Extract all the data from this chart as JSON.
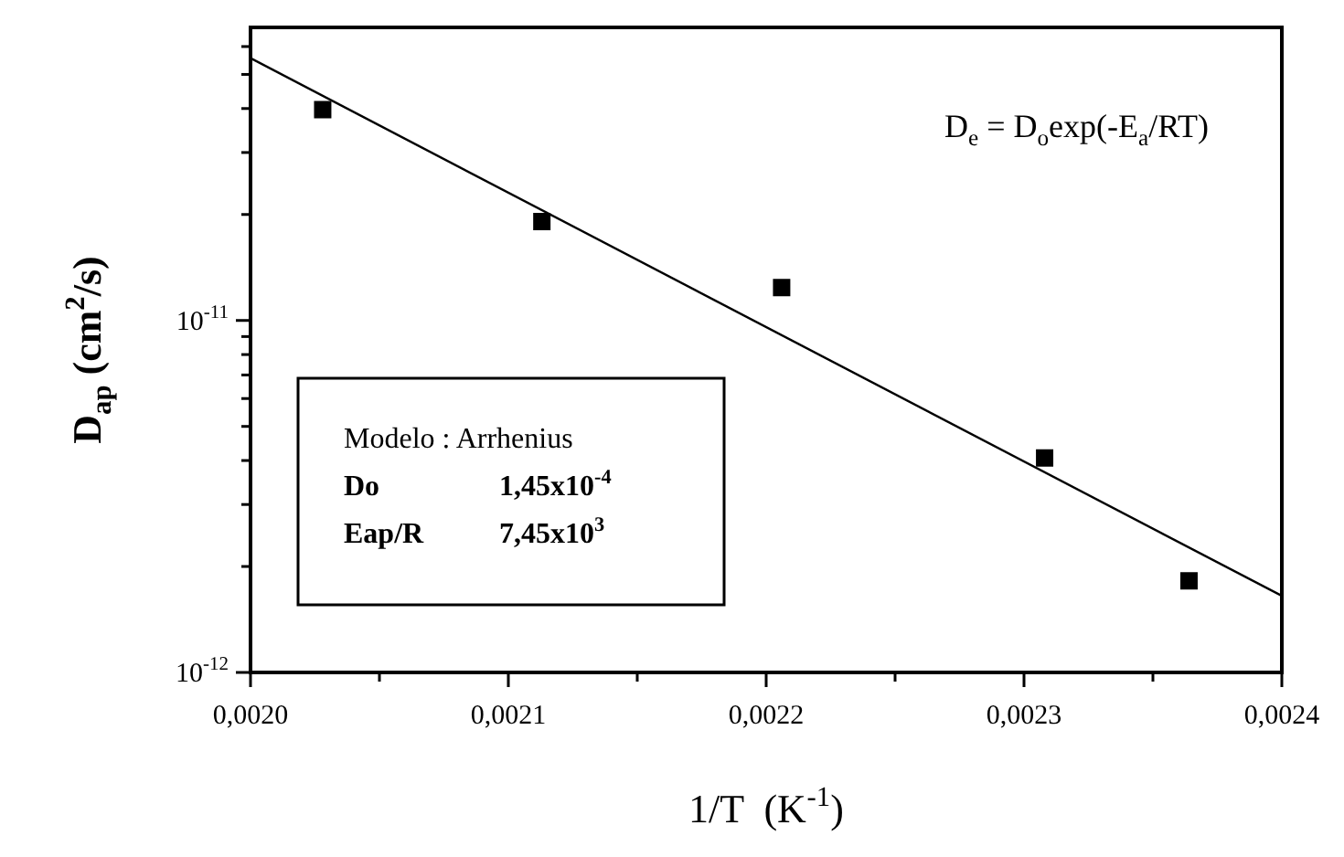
{
  "chart_data": {
    "type": "scatter",
    "xlabel": "1/T  (K$^{-1}$)",
    "ylabel": "D$_{ap}$ (cm$^{2}$/s)",
    "log": "y",
    "grid": false,
    "legend": false,
    "marker": "square",
    "xlim": [
      0.002,
      0.0024
    ],
    "xticks": [
      {
        "value": 0.002,
        "label": "0,0020"
      },
      {
        "value": 0.00205,
        "label": null
      },
      {
        "value": 0.0021,
        "label": "0,0021"
      },
      {
        "value": 0.00215,
        "label": null
      },
      {
        "value": 0.0022,
        "label": "0,0022"
      },
      {
        "value": 0.00225,
        "label": null
      },
      {
        "value": 0.0023,
        "label": "0,0023"
      },
      {
        "value": 0.00235,
        "label": null
      },
      {
        "value": 0.0024,
        "label": "0,0024"
      }
    ],
    "ylim": [
      1e-12,
      6.8e-11
    ],
    "yticks": [
      {
        "value": 1e-12,
        "label": "10$^{-12}$"
      },
      {
        "value": 2e-12,
        "label": null
      },
      {
        "value": 3e-12,
        "label": null
      },
      {
        "value": 4e-12,
        "label": null
      },
      {
        "value": 5e-12,
        "label": null
      },
      {
        "value": 6e-12,
        "label": null
      },
      {
        "value": 7e-12,
        "label": null
      },
      {
        "value": 8e-12,
        "label": null
      },
      {
        "value": 9e-12,
        "label": null
      },
      {
        "value": 1e-11,
        "label": "10$^{-11}$"
      },
      {
        "value": 2e-11,
        "label": null
      },
      {
        "value": 3e-11,
        "label": null
      },
      {
        "value": 4e-11,
        "label": null
      },
      {
        "value": 5e-11,
        "label": null
      },
      {
        "value": 6e-11,
        "label": null
      }
    ],
    "series": [
      {
        "type": "scatter",
        "color": "#000000",
        "x": [
          0.002028,
          0.002113,
          0.002206,
          0.002308,
          0.002364
        ],
        "values": [
          3.97e-11,
          1.91e-11,
          1.24e-11,
          4.07e-12,
          1.82e-12
        ]
      },
      {
        "type": "line",
        "color": "#000000",
        "marker": "none",
        "x": [
          0.002,
          0.0024
        ],
        "values": [
          5.56e-11,
          1.65e-12
        ]
      }
    ],
    "annotations": [
      "D$_{e}$ = D$_{o}$exp(-E$_{a}$/RT)",
      "Modelo : Arrhenius",
      "Do      1,45x10$^{-4}$",
      "Eap/R  7,45x10$^{3}$"
    ]
  }
}
